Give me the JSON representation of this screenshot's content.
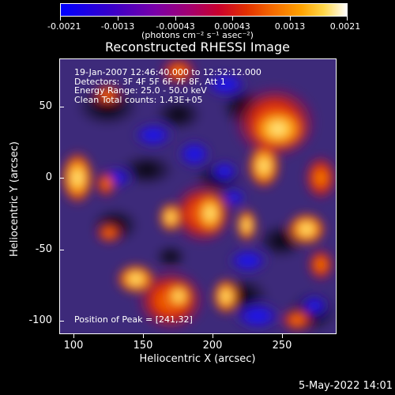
{
  "colorbar": {
    "tick_labels": [
      "-0.0021",
      "-0.0013",
      "-0.00043",
      "0.00043",
      "0.0013",
      "0.0021"
    ],
    "units": "(photons cm⁻² s⁻¹ asec⁻²)"
  },
  "plot": {
    "title": "Reconstructed RHESSI Image",
    "xlabel": "Heliocentric X (arcsec)",
    "ylabel": "Heliocentric Y (arcsec)",
    "x_tick_labels": [
      "100",
      "150",
      "200",
      "250"
    ],
    "y_tick_labels": [
      "50",
      "0",
      "-50",
      "-100"
    ],
    "info_lines": [
      "19-Jan-2007 12:46:40.000 to 12:52:12.000",
      "Detectors: 3F 4F 5F 6F 7F 8F, Att 1",
      "Energy Range: 25.0 - 50.0 keV",
      "Clean     Total counts: 1.43E+05"
    ],
    "peak_text": "Position of Peak = [241,32]"
  },
  "footer": {
    "timestamp": "5-May-2022 14:01"
  },
  "colors": {
    "background": "#000000",
    "text": "#ffffff"
  }
}
